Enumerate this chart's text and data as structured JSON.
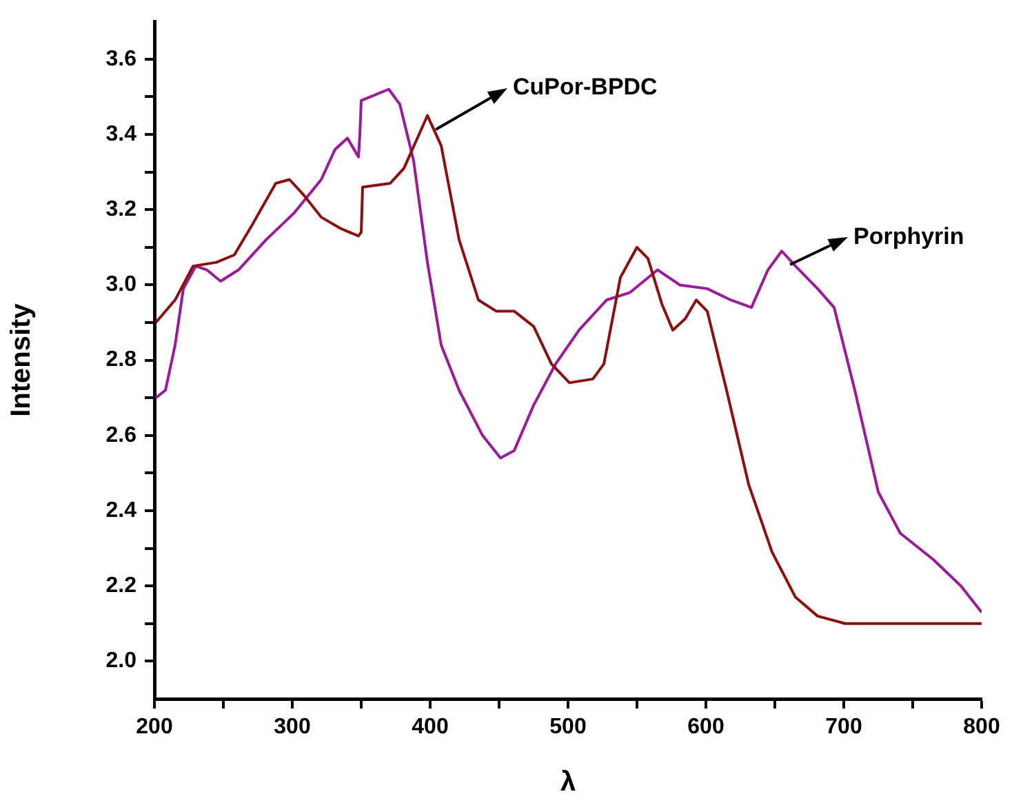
{
  "chart_data": {
    "type": "line",
    "xlabel": "λ",
    "ylabel": "Intensity",
    "xlim": [
      200,
      800
    ],
    "ylim": [
      1.9,
      3.7
    ],
    "xticks": [
      200,
      {
        "value": 250,
        "label": null
      },
      300,
      {
        "value": 350,
        "label": null
      },
      400,
      {
        "value": 450,
        "label": null
      },
      500,
      {
        "value": 550,
        "label": null
      },
      600,
      {
        "value": 650,
        "label": null
      },
      700,
      {
        "value": 750,
        "label": null
      },
      800
    ],
    "yticks": [
      {
        "value": 2.0,
        "label": "2.0"
      },
      {
        "value": 2.1,
        "label": null
      },
      {
        "value": 2.2,
        "label": "2.2"
      },
      {
        "value": 2.3,
        "label": null
      },
      {
        "value": 2.4,
        "label": "2.4"
      },
      {
        "value": 2.5,
        "label": null
      },
      {
        "value": 2.6,
        "label": "2.6"
      },
      {
        "value": 2.7,
        "label": null
      },
      {
        "value": 2.8,
        "label": "2.8"
      },
      {
        "value": 2.9,
        "label": null
      },
      {
        "value": 3.0,
        "label": "3.0"
      },
      {
        "value": 3.1,
        "label": null
      },
      {
        "value": 3.2,
        "label": "3.2"
      },
      {
        "value": 3.3,
        "label": null
      },
      {
        "value": 3.4,
        "label": "3.4"
      },
      {
        "value": 3.5,
        "label": null
      },
      {
        "value": 3.6,
        "label": "3.6"
      }
    ],
    "grid": false,
    "legend": false,
    "marker": "none",
    "line_style": "solid",
    "series": [
      {
        "name": "CuPor-BPDC",
        "color": "#8b1010",
        "x": [
          201,
          215,
          228,
          245,
          258,
          271,
          288,
          298,
          308,
          321,
          335,
          348,
          350,
          351,
          371,
          381,
          398,
          408,
          421,
          435,
          448,
          461,
          475,
          488,
          501,
          518,
          526,
          538,
          550,
          558,
          568,
          576,
          585,
          593,
          601,
          615,
          631,
          648,
          665,
          681,
          701,
          731,
          765,
          800
        ],
        "values": [
          2.9,
          2.96,
          3.05,
          3.06,
          3.08,
          3.16,
          3.27,
          3.28,
          3.24,
          3.18,
          3.15,
          3.13,
          3.14,
          3.26,
          3.27,
          3.31,
          3.45,
          3.37,
          3.12,
          2.96,
          2.93,
          2.93,
          2.89,
          2.79,
          2.74,
          2.75,
          2.79,
          3.02,
          3.1,
          3.07,
          2.95,
          2.88,
          2.91,
          2.96,
          2.93,
          2.72,
          2.47,
          2.29,
          2.17,
          2.12,
          2.1,
          2.1,
          2.1,
          2.1
        ]
      },
      {
        "name": "Porphyrin",
        "color": "#9a1a9a",
        "x": [
          201,
          208,
          215,
          221,
          230,
          238,
          248,
          261,
          281,
          301,
          321,
          331,
          340,
          348,
          349,
          350,
          370,
          378,
          388,
          398,
          408,
          421,
          438,
          451,
          461,
          475,
          491,
          508,
          528,
          545,
          565,
          581,
          601,
          618,
          633,
          645,
          655,
          665,
          681,
          693,
          708,
          725,
          741,
          765,
          785,
          800
        ],
        "values": [
          2.7,
          2.72,
          2.84,
          2.99,
          3.05,
          3.04,
          3.01,
          3.04,
          3.12,
          3.19,
          3.28,
          3.36,
          3.39,
          3.34,
          3.4,
          3.49,
          3.52,
          3.48,
          3.33,
          3.06,
          2.84,
          2.72,
          2.6,
          2.54,
          2.56,
          2.68,
          2.79,
          2.88,
          2.96,
          2.98,
          3.04,
          3.0,
          2.99,
          2.96,
          2.94,
          3.04,
          3.09,
          3.05,
          2.99,
          2.94,
          2.72,
          2.45,
          2.34,
          2.27,
          2.2,
          2.13
        ]
      }
    ]
  }
}
